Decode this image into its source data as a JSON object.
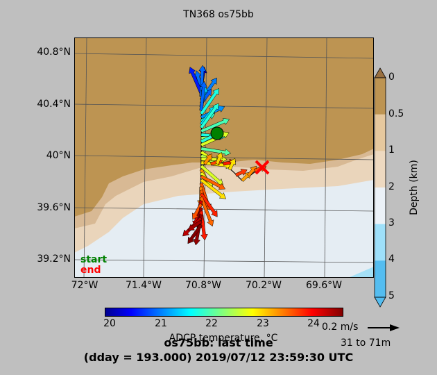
{
  "title": "TN368 os75bb",
  "lat_labels": [
    "40.8°N",
    "40.4°N",
    "40°N",
    "39.6°N",
    "39.2°N"
  ],
  "lon_labels": [
    "72°W",
    "71.4°W",
    "70.8°W",
    "70.2°W",
    "69.6°W"
  ],
  "depth_colorbar": {
    "label": "Depth (km)",
    "ticks": [
      "0",
      "0.5",
      "1",
      "2",
      "3",
      "4",
      "5"
    ],
    "colors": [
      "#9a7040",
      "#bd9452",
      "#e6c89e",
      "#eed9c0",
      "#ecf2f8",
      "#9ee0fa",
      "#54bdf0"
    ]
  },
  "temp_colorbar": {
    "label": "ADCP temperature, °C",
    "ticks": [
      "20",
      "21",
      "22",
      "23",
      "24"
    ],
    "range": [
      19.9,
      24.55
    ]
  },
  "legend": {
    "start": "start",
    "end": "end",
    "start_color": "#008000",
    "end_color": "#ff0000"
  },
  "scale": {
    "speed": "0.2 m/s",
    "depth_range": "31 to 71m"
  },
  "status": {
    "line1": "os75bb: last time",
    "line2": "(dday = 193.000) 2019/07/12 23:59:30 UTC"
  }
}
